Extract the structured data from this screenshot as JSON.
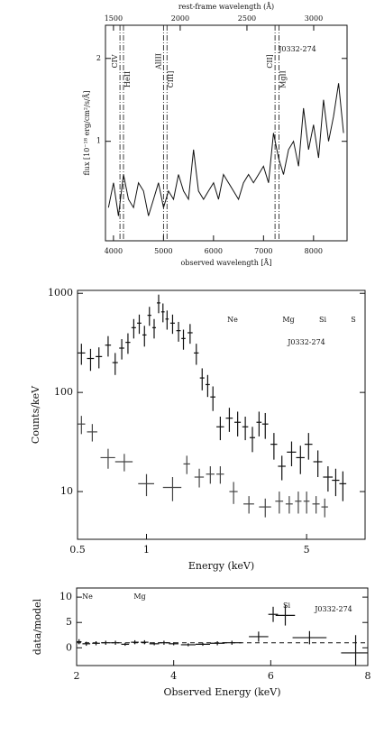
{
  "chart_data": [
    {
      "type": "line",
      "object": "J0332-274",
      "xlabel": "observed wavelength  [Å]",
      "x2label": "rest-frame wavelength (Å)",
      "ylabel": "flux [10⁻¹⁸ erg/cm²/s/Å]",
      "xlim": [
        3840,
        8670
      ],
      "xticks": [
        4000,
        5000,
        6000,
        7000,
        8000
      ],
      "x2lim": [
        1440,
        3250
      ],
      "x2ticks": [
        1500,
        2000,
        2500,
        3000
      ],
      "ylim": [
        -0.2,
        2.4
      ],
      "yticks": [
        1,
        2
      ],
      "lines": [
        4130,
        4200,
        5000,
        5070,
        7230,
        7310
      ],
      "line_labels": [
        "CIV",
        "HeII",
        "AlIII",
        "CIII]",
        "CII]",
        "MgII"
      ],
      "series": [
        {
          "color": "#111111",
          "x": [
            3900,
            4000,
            4100,
            4200,
            4300,
            4400,
            4500,
            4600,
            4700,
            4800,
            4900,
            5000,
            5100,
            5200,
            5300,
            5400,
            5500,
            5600,
            5700,
            5800,
            5900,
            6000,
            6100,
            6200,
            6300,
            6400,
            6500,
            6600,
            6700,
            6800,
            6900,
            7000,
            7100,
            7200,
            7300,
            7400,
            7500,
            7600,
            7700,
            7800,
            7900,
            8000,
            8100,
            8200,
            8300,
            8400,
            8500,
            8600
          ],
          "values": [
            0.2,
            0.5,
            0.1,
            0.6,
            0.3,
            0.2,
            0.5,
            0.4,
            0.1,
            0.3,
            0.5,
            0.2,
            0.4,
            0.3,
            0.6,
            0.4,
            0.3,
            0.9,
            0.4,
            0.3,
            0.4,
            0.5,
            0.3,
            0.6,
            0.5,
            0.4,
            0.3,
            0.5,
            0.6,
            0.5,
            0.6,
            0.7,
            0.5,
            1.1,
            0.8,
            0.6,
            0.9,
            1.0,
            0.7,
            1.4,
            0.9,
            1.2,
            0.8,
            1.5,
            1.0,
            1.3,
            1.7,
            1.1
          ]
        }
      ]
    },
    {
      "type": "errorbar",
      "object": "J0332-274",
      "annotations": [
        "Ne",
        "Mg",
        "Si",
        "S"
      ],
      "xlabel": "Energy (keV)",
      "ylabel": "Counts/keV",
      "xlog": true,
      "ylog": true,
      "xlim": [
        0.5,
        9
      ],
      "xticks": [
        0.5,
        1,
        5
      ],
      "ylim": [
        3.3,
        1070
      ],
      "yticks": [
        10,
        100,
        1000
      ],
      "series": [
        {
          "color": "#111111",
          "x": [
            0.52,
            0.57,
            0.62,
            0.68,
            0.73,
            0.78,
            0.83,
            0.88,
            0.93,
            0.98,
            1.03,
            1.08,
            1.13,
            1.18,
            1.23,
            1.3,
            1.38,
            1.45,
            1.55,
            1.65,
            1.75,
            1.85,
            1.95,
            2.1,
            2.3,
            2.5,
            2.7,
            2.9,
            3.1,
            3.3,
            3.6,
            3.9,
            4.3,
            4.7,
            5.1,
            5.6,
            6.2,
            6.7,
            7.2
          ],
          "values": [
            250,
            220,
            230,
            300,
            200,
            280,
            320,
            450,
            500,
            380,
            600,
            450,
            800,
            650,
            550,
            500,
            420,
            350,
            400,
            250,
            140,
            120,
            90,
            45,
            55,
            50,
            45,
            35,
            50,
            48,
            30,
            18,
            25,
            22,
            30,
            20,
            14,
            13,
            12
          ],
          "yerr": [
            60,
            55,
            55,
            70,
            50,
            65,
            75,
            100,
            110,
            90,
            130,
            100,
            170,
            140,
            120,
            110,
            95,
            80,
            90,
            60,
            35,
            30,
            25,
            12,
            15,
            14,
            12,
            10,
            14,
            14,
            9,
            5,
            7,
            7,
            9,
            6,
            4,
            4,
            4
          ],
          "xerr": [
            0.02,
            0.02,
            0.02,
            0.02,
            0.02,
            0.02,
            0.02,
            0.02,
            0.02,
            0.02,
            0.02,
            0.02,
            0.02,
            0.02,
            0.02,
            0.03,
            0.03,
            0.03,
            0.04,
            0.04,
            0.04,
            0.04,
            0.05,
            0.08,
            0.08,
            0.08,
            0.08,
            0.08,
            0.08,
            0.1,
            0.12,
            0.15,
            0.2,
            0.2,
            0.2,
            0.25,
            0.3,
            0.25,
            0.25
          ]
        },
        {
          "color": "#444444",
          "x": [
            0.52,
            0.58,
            0.68,
            0.8,
            1.0,
            1.3,
            1.5,
            1.7,
            1.9,
            2.1,
            2.4,
            2.8,
            3.3,
            3.8,
            4.2,
            4.6,
            5.0,
            5.5,
            6.0
          ],
          "values": [
            48,
            40,
            22,
            20,
            12,
            11,
            19,
            14,
            15,
            15,
            10,
            7.5,
            7,
            8,
            7.5,
            8,
            8,
            7.5,
            7
          ],
          "yerr": [
            10,
            8,
            5,
            4,
            3,
            3,
            4,
            3,
            3,
            3,
            2.5,
            1.5,
            1.5,
            2,
            1.5,
            2,
            2,
            1.5,
            1.5
          ],
          "xerr": [
            0.02,
            0.03,
            0.05,
            0.07,
            0.08,
            0.12,
            0.05,
            0.08,
            0.08,
            0.08,
            0.1,
            0.15,
            0.2,
            0.15,
            0.15,
            0.15,
            0.15,
            0.2,
            0.2
          ]
        }
      ]
    },
    {
      "type": "errorbar",
      "object": "J0332-274",
      "annotations": [
        "Ne",
        "Mg",
        "Si"
      ],
      "xlabel": "Observed Energy (keV)",
      "ylabel": "data/model",
      "xlim": [
        2,
        8
      ],
      "xticks": [
        2,
        4,
        6,
        8
      ],
      "ylim": [
        -3.5,
        11.8
      ],
      "yticks": [
        0,
        5,
        10
      ],
      "reference": 1,
      "series": [
        {
          "color": "#111111",
          "x": [
            2.05,
            2.2,
            2.4,
            2.6,
            2.8,
            3.0,
            3.2,
            3.4,
            3.6,
            3.8,
            4.0,
            4.3,
            4.6,
            4.9,
            5.2,
            5.75,
            6.05,
            6.3,
            6.8,
            7.75
          ],
          "values": [
            1.2,
            0.8,
            0.9,
            1.0,
            1.0,
            0.7,
            1.1,
            1.1,
            0.8,
            1.0,
            0.8,
            0.6,
            0.7,
            0.9,
            1.0,
            2.2,
            6.6,
            6.4,
            2.0,
            -1.0
          ],
          "yerr": [
            0.5,
            0.4,
            0.4,
            0.4,
            0.4,
            0.3,
            0.4,
            0.4,
            0.3,
            0.4,
            0.3,
            0.3,
            0.3,
            0.4,
            0.4,
            1.0,
            1.5,
            2.0,
            1.3,
            3.5
          ],
          "xerr": [
            0.05,
            0.08,
            0.08,
            0.08,
            0.08,
            0.08,
            0.08,
            0.08,
            0.1,
            0.1,
            0.1,
            0.15,
            0.15,
            0.15,
            0.2,
            0.2,
            0.1,
            0.2,
            0.35,
            0.3
          ]
        }
      ]
    }
  ]
}
